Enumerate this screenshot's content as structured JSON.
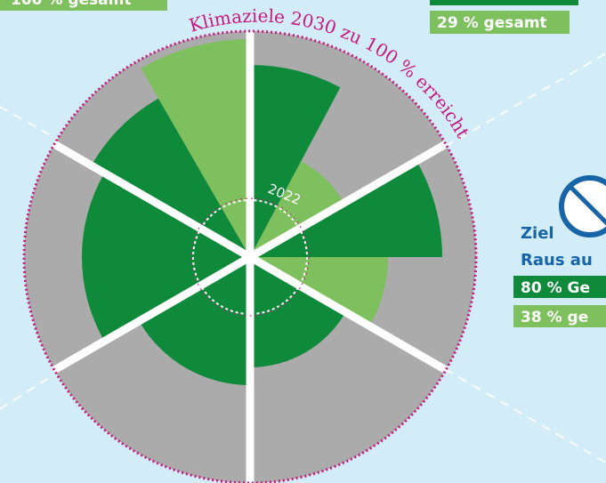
{
  "header": {
    "top_left_label": "100 % gesamt",
    "top_right_label": "29 % gesamt"
  },
  "wheel": {
    "arc_title": "Klimaziele 2030 zu 100 % erreicht",
    "center_year": "2022"
  },
  "goal": {
    "prefix": "Ziel",
    "heading": "Raus au",
    "total_box": "80 % Ge",
    "share_box": "38 % ge"
  }
}
